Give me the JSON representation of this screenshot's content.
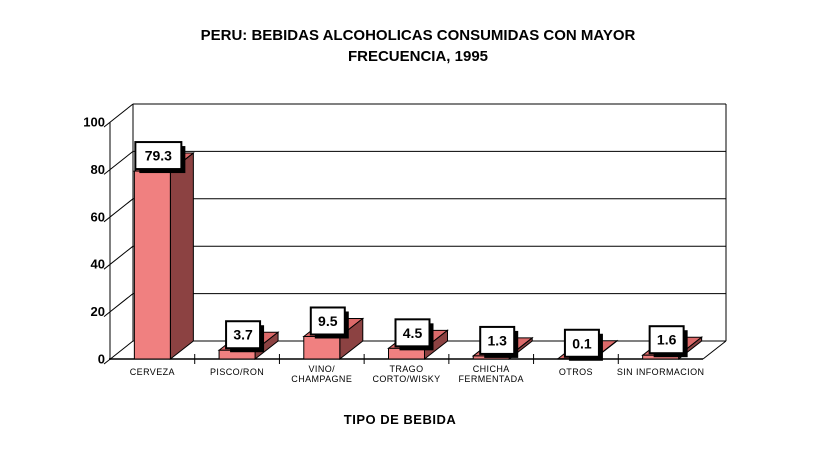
{
  "chart_data": {
    "type": "bar",
    "style": "3d-bar",
    "title": "PERU: BEBIDAS ALCOHOLICAS CONSUMIDAS CON MAYOR FRECUENCIA, 1995",
    "title_lines": [
      "PERU: BEBIDAS ALCOHOLICAS CONSUMIDAS CON MAYOR",
      "FRECUENCIA, 1995"
    ],
    "xlabel": "TIPO DE BEBIDA",
    "ylabel": "",
    "categories": [
      "CERVEZA",
      "PISCO/RON",
      "VINO/CHAMPAGNE",
      "TRAGO CORTO/WISKY",
      "CHICHA FERMENTADA",
      "OTROS",
      "SIN INFORMACION"
    ],
    "category_display_lines": [
      [
        "CERVEZA"
      ],
      [
        "PISCO/RON"
      ],
      [
        "VINO/",
        "CHAMPAGNE"
      ],
      [
        "TRAGO",
        "CORTO/WISKY"
      ],
      [
        "CHICHA",
        "FERMENTADA"
      ],
      [
        "OTROS"
      ],
      [
        "SIN INFORMACION"
      ]
    ],
    "values": [
      79.3,
      3.7,
      9.5,
      4.5,
      1.3,
      0.1,
      1.6
    ],
    "value_labels": [
      "79.3",
      "3.7",
      "9.5",
      "4.5",
      "1.3",
      "0.1",
      "1.6"
    ],
    "y_ticks": [
      0,
      20,
      40,
      60,
      80,
      100
    ],
    "ylim": [
      0,
      100
    ],
    "grid": true,
    "legend": false,
    "colors": {
      "bar_front": "#F08080",
      "bar_top": "#DC6A6A",
      "bar_side": "#8C4242",
      "outline": "#000000",
      "label_box_fill": "#FFFFFF",
      "label_box_shadow": "#000000",
      "text": "#000000",
      "background": "#FFFFFF"
    }
  }
}
